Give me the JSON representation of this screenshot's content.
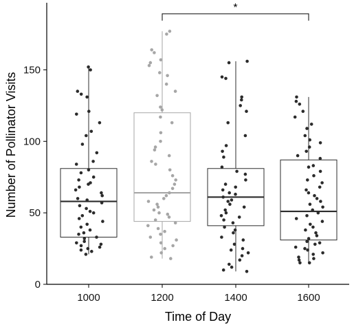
{
  "chart_data": {
    "type": "box",
    "xlabel": "Time of Day",
    "ylabel": "Number of Pollinator Visits",
    "categories": [
      "1000",
      "1200",
      "1400",
      "1600"
    ],
    "ylim": [
      0,
      195
    ],
    "yticks": [
      0,
      50,
      100,
      150
    ],
    "grid": false,
    "colors": {
      "dark": "#2b2b2b",
      "highlight": "#a6a6a6",
      "axis": "#000000"
    },
    "boxes": [
      {
        "category": "1000",
        "q1": 33,
        "median": 58,
        "q3": 81,
        "whisker_low": 21,
        "whisker_high": 152,
        "color": "#2b2b2b"
      },
      {
        "category": "1200",
        "q1": 44,
        "median": 64,
        "q3": 120,
        "whisker_low": 18,
        "whisker_high": 177,
        "color": "#a6a6a6"
      },
      {
        "category": "1400",
        "q1": 41,
        "median": 61,
        "q3": 81,
        "whisker_low": 9,
        "whisker_high": 156,
        "color": "#2b2b2b"
      },
      {
        "category": "1600",
        "q1": 31,
        "median": 51,
        "q3": 87,
        "whisker_low": 15,
        "whisker_high": 131,
        "color": "#2b2b2b"
      }
    ],
    "points": [
      [
        152,
        150,
        135,
        133,
        131,
        121,
        119,
        113,
        107,
        104,
        98,
        92,
        86,
        84,
        80,
        78,
        75,
        73,
        71,
        70,
        68,
        66,
        64,
        62,
        60,
        59,
        57,
        55,
        53,
        51,
        50,
        48,
        46,
        44,
        42,
        40,
        38,
        36,
        35,
        33,
        32,
        30,
        29,
        28,
        27,
        26,
        25,
        24,
        23,
        21
      ],
      [
        177,
        175,
        164,
        162,
        157,
        155,
        153,
        148,
        146,
        140,
        135,
        132,
        124,
        122,
        117,
        113,
        106,
        100,
        96,
        94,
        90,
        86,
        84,
        80,
        76,
        73,
        70,
        67,
        64,
        62,
        60,
        58,
        56,
        54,
        52,
        50,
        49,
        47,
        45,
        43,
        41,
        39,
        37,
        35,
        33,
        31,
        29,
        27,
        25,
        22,
        19,
        18
      ],
      [
        156,
        155,
        145,
        144,
        131,
        129,
        125,
        121,
        113,
        104,
        97,
        93,
        89,
        82,
        79,
        77,
        73,
        70,
        68,
        66,
        64,
        63,
        61,
        59,
        58,
        56,
        54,
        52,
        50,
        48,
        47,
        45,
        43,
        40,
        38,
        36,
        33,
        31,
        28,
        25,
        24,
        22,
        20,
        17,
        14,
        12,
        10,
        9
      ],
      [
        131,
        128,
        126,
        121,
        117,
        112,
        109,
        104,
        101,
        99,
        96,
        93,
        90,
        88,
        83,
        82,
        79,
        76,
        73,
        71,
        68,
        66,
        64,
        62,
        60,
        58,
        56,
        54,
        52,
        50,
        48,
        46,
        44,
        42,
        40,
        38,
        36,
        34,
        32,
        30,
        29,
        28,
        26,
        25,
        24,
        22,
        21,
        19,
        18,
        17,
        15,
        15
      ]
    ],
    "significance": {
      "from": "1200",
      "to": "1600",
      "label": "*"
    }
  }
}
